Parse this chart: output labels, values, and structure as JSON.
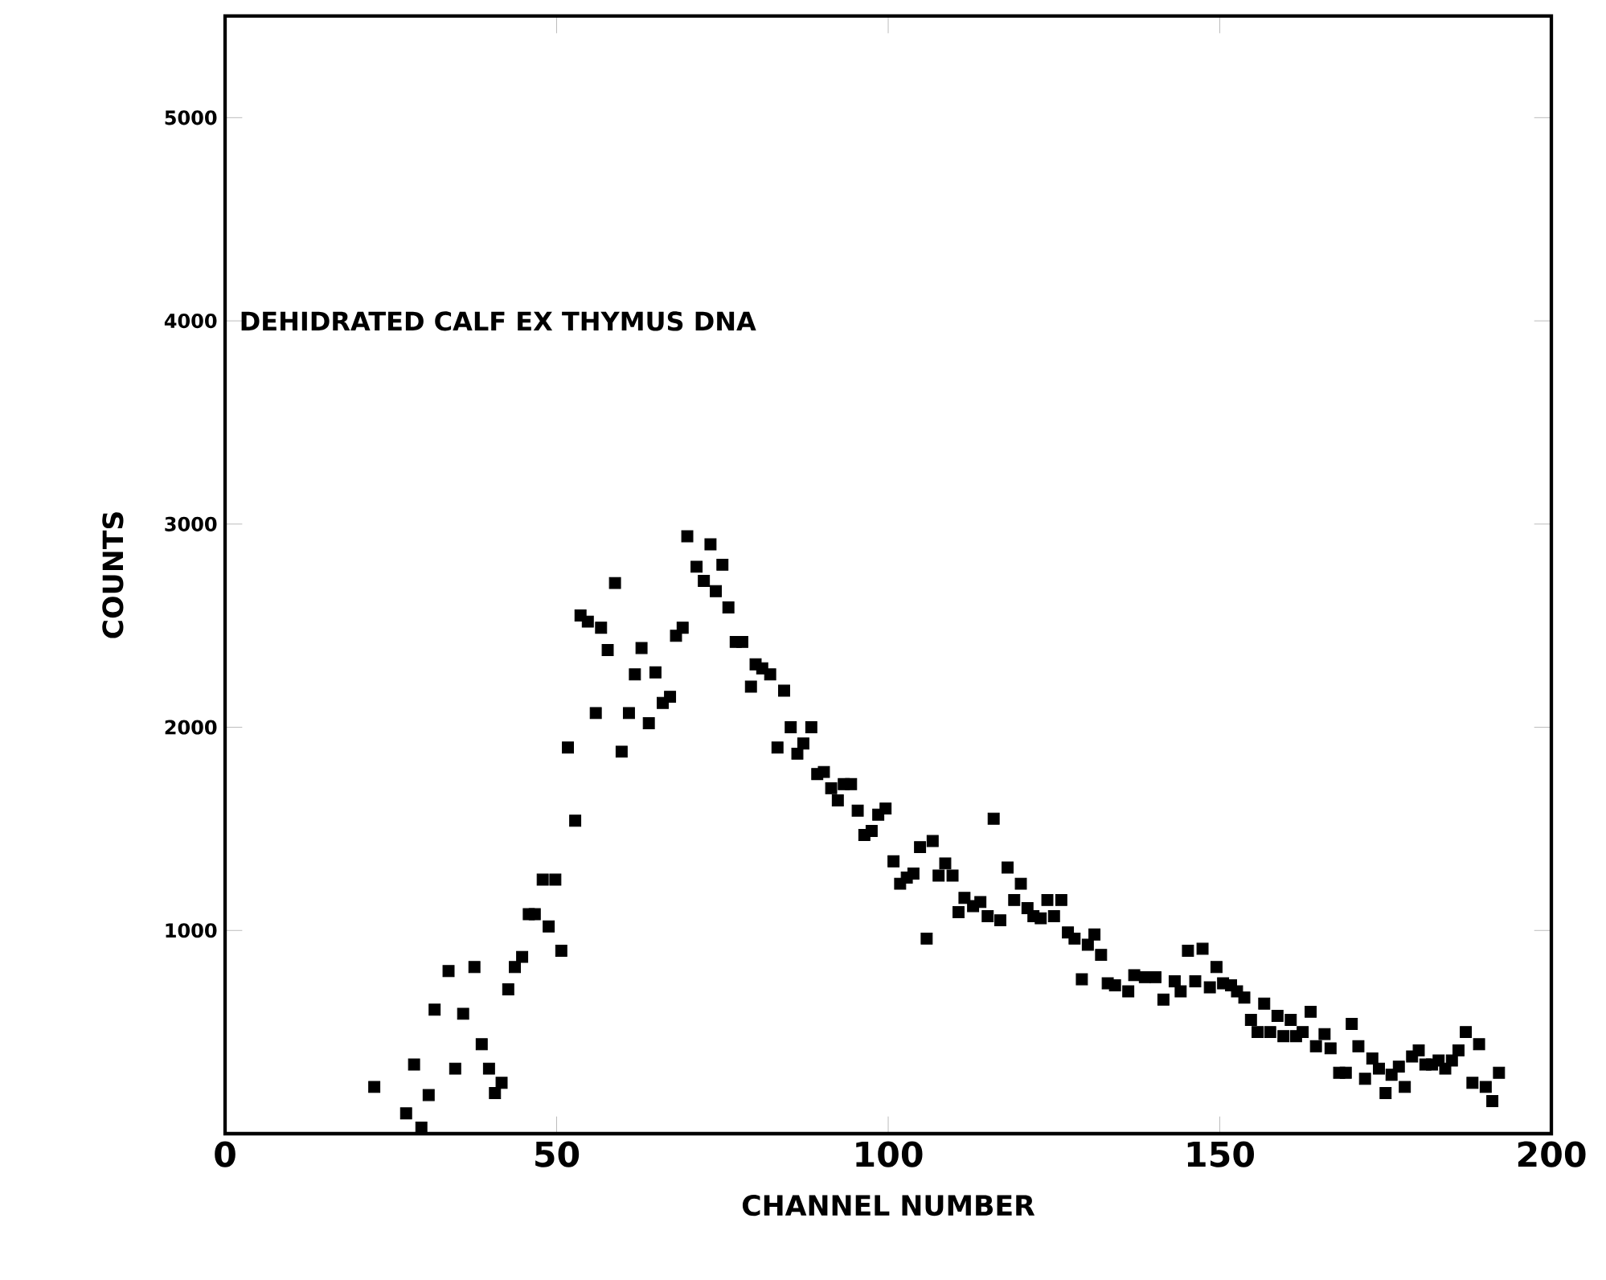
{
  "chart_data": {
    "type": "scatter",
    "xlabel": "CHANNEL NUMBER",
    "ylabel": "COUNTS",
    "annotations": [
      "DEHIDRATED CALF EX THYMUS DNA"
    ],
    "xlim": [
      0,
      200
    ],
    "ylim": [
      0,
      5500
    ],
    "xticks": [
      0,
      50,
      100,
      150,
      200
    ],
    "yticks": [
      1000,
      2000,
      3000,
      4000,
      5000
    ],
    "grid": false,
    "marker": "square",
    "series": [
      {
        "color": "#000000",
        "x": [
          22.5,
          27.3,
          29.6,
          28.5,
          30.7,
          31.6,
          33.7,
          34.7,
          35.9,
          37.6,
          38.7,
          39.8,
          40.7,
          41.7,
          42.7,
          43.7,
          44.8,
          45.8,
          46.7,
          47.9,
          48.8,
          49.8,
          50.7,
          51.7,
          52.8,
          53.6,
          54.7,
          55.9,
          56.7,
          57.7,
          58.8,
          59.8,
          60.9,
          61.8,
          62.8,
          63.9,
          64.9,
          66.0,
          67.1,
          68.0,
          69.0,
          69.7,
          71.1,
          72.2,
          73.2,
          74.0,
          75.0,
          75.9,
          77.0,
          78.0,
          79.3,
          80.0,
          81.0,
          82.2,
          84.3,
          83.3,
          85.3,
          86.3,
          87.2,
          88.4,
          89.3,
          90.3,
          91.4,
          92.4,
          93.3,
          94.4,
          95.4,
          96.4,
          97.5,
          98.5,
          99.6,
          100.8,
          101.8,
          102.8,
          103.8,
          104.8,
          105.8,
          106.7,
          107.6,
          108.6,
          109.7,
          110.6,
          111.5,
          112.8,
          113.9,
          115.0,
          115.9,
          116.9,
          118.0,
          119.0,
          120.0,
          121.0,
          121.9,
          123.0,
          124.0,
          125.0,
          126.1,
          127.1,
          128.1,
          129.2,
          130.1,
          131.1,
          132.1,
          133.1,
          134.2,
          136.2,
          137.1,
          138.7,
          140.3,
          141.5,
          143.2,
          144.1,
          145.2,
          146.3,
          147.4,
          148.5,
          149.5,
          150.5,
          151.7,
          152.6,
          153.7,
          154.7,
          155.7,
          156.7,
          157.6,
          158.7,
          159.6,
          160.7,
          161.5,
          162.5,
          163.7,
          164.5,
          165.8,
          166.7,
          168.0,
          169.0,
          169.9,
          170.9,
          171.9,
          173.0,
          174.0,
          175.0,
          175.9,
          177.0,
          177.9,
          179.0,
          180.0,
          181.0,
          182.0,
          183.0,
          184.0,
          185.0,
          186.0,
          187.1,
          188.1,
          189.1,
          190.1,
          191.1,
          192.1
        ],
        "values": [
          230,
          100,
          30,
          340,
          190,
          610,
          800,
          320,
          590,
          820,
          440,
          320,
          200,
          250,
          710,
          820,
          870,
          1080,
          1080,
          1250,
          1020,
          1250,
          900,
          1900,
          1540,
          2550,
          2520,
          2070,
          2490,
          2380,
          2710,
          1880,
          2070,
          2260,
          2390,
          2020,
          2270,
          2120,
          2150,
          2450,
          2490,
          2940,
          2790,
          2720,
          2900,
          2670,
          2800,
          2590,
          2420,
          2420,
          2200,
          2310,
          2290,
          2260,
          2180,
          1900,
          2000,
          1870,
          1920,
          2000,
          1770,
          1780,
          1700,
          1640,
          1720,
          1720,
          1590,
          1470,
          1490,
          1570,
          1600,
          1340,
          1230,
          1260,
          1280,
          1410,
          960,
          1440,
          1270,
          1330,
          1270,
          1090,
          1160,
          1120,
          1140,
          1070,
          1550,
          1050,
          1310,
          1150,
          1230,
          1110,
          1070,
          1060,
          1150,
          1070,
          1150,
          990,
          960,
          760,
          930,
          980,
          880,
          740,
          730,
          700,
          780,
          770,
          770,
          660,
          750,
          700,
          900,
          750,
          910,
          720,
          820,
          740,
          730,
          700,
          670,
          560,
          500,
          640,
          500,
          580,
          480,
          560,
          480,
          500,
          600,
          430,
          490,
          420,
          300,
          300,
          540,
          430,
          270,
          370,
          320,
          200,
          290,
          330,
          230,
          380,
          410,
          340,
          340,
          360,
          320,
          360,
          410,
          500,
          250,
          440,
          230,
          160,
          300
        ]
      }
    ]
  }
}
